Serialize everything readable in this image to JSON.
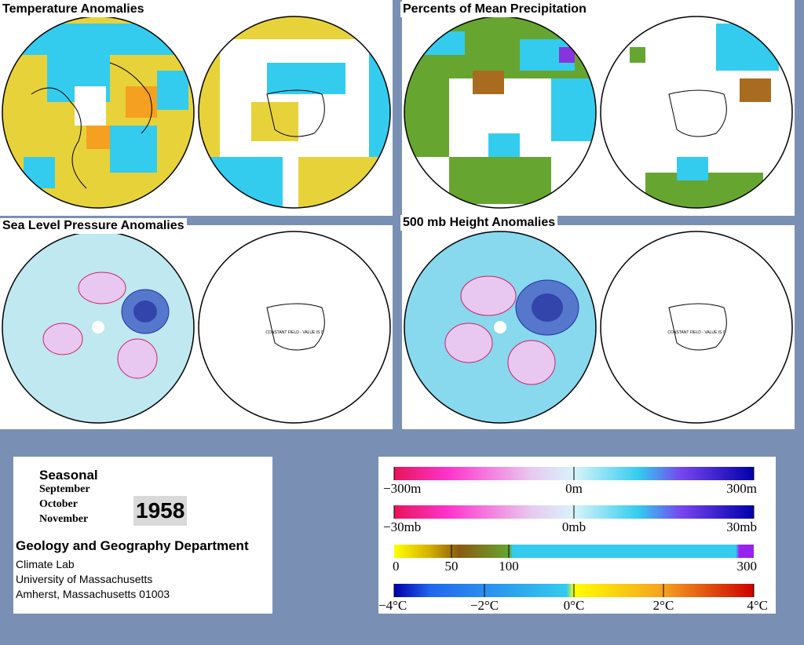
{
  "panels": {
    "temp": {
      "title": "Temperature Anomalies"
    },
    "precip": {
      "title": "Percents of Mean Precipitation"
    },
    "slp": {
      "title": "Sea Level Pressure Anomalies",
      "note": "CONSTANT FIELD - VALUE IS 0"
    },
    "height": {
      "title": "500 mb Height Anomalies",
      "note": "CONSTANT FIELD - VALUE IS 0"
    }
  },
  "season": {
    "title": "Seasonal",
    "months": [
      "September",
      "October",
      "November"
    ],
    "year": "1958"
  },
  "department": {
    "name": "Geology and Geography Department",
    "lines": [
      "Climate Lab",
      "University of Massachusetts",
      "Amherst, Massachusetts 01003"
    ]
  },
  "legends": {
    "height": {
      "labels": [
        "−300m",
        "0m",
        "300m"
      ]
    },
    "pressure": {
      "labels": [
        "−30mb",
        "0mb",
        "30mb"
      ]
    },
    "precip": {
      "labels": [
        "0",
        "50",
        "100",
        "300"
      ]
    },
    "temp": {
      "labels": [
        "−4°C",
        "−2°C",
        "0°C",
        "2°C",
        "4°C"
      ]
    }
  },
  "colors": {
    "background": "#7a8fb4",
    "warm": "#f0d000",
    "cool": "#33ccee",
    "positive_contour": "#cc2266",
    "negative_contour": "#2233aa"
  }
}
